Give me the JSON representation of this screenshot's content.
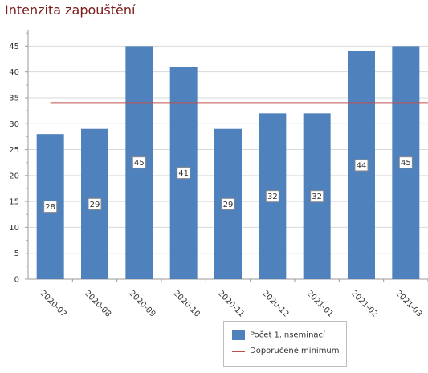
{
  "chart_data": {
    "type": "bar",
    "title": "Intenzita zapouštění",
    "categories": [
      "2020-07",
      "2020-08",
      "2020-09",
      "2020-10",
      "2020-11",
      "2020-12",
      "2021-01",
      "2021-02",
      "2021-03"
    ],
    "series": [
      {
        "name": "Počet 1.inseminací",
        "type": "bar",
        "color": "#4f81bd",
        "values": [
          28,
          29,
          45,
          41,
          29,
          32,
          32,
          44,
          45
        ]
      },
      {
        "name": "Doporučené minimum",
        "type": "line",
        "color": "#c0504d",
        "value": 34
      }
    ],
    "ylim": [
      0,
      48
    ],
    "yticks": [
      0,
      5,
      10,
      15,
      20,
      25,
      30,
      35,
      40,
      45
    ],
    "grid": true,
    "legend_position": "bottom"
  }
}
